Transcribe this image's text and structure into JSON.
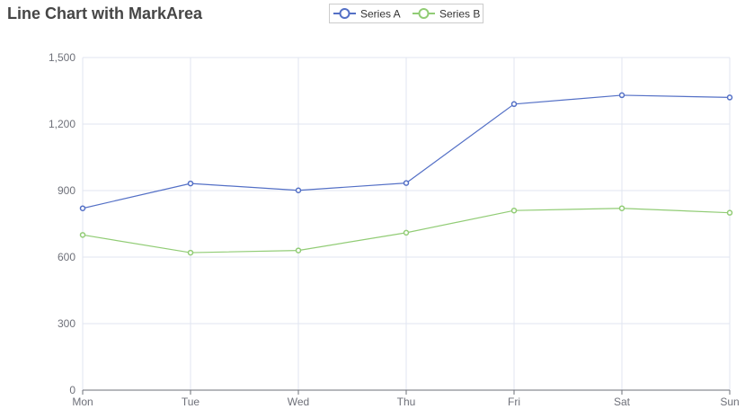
{
  "chart_data": {
    "type": "line",
    "title": "Line Chart with MarkArea",
    "categories": [
      "Mon",
      "Tue",
      "Wed",
      "Thu",
      "Fri",
      "Sat",
      "Sun"
    ],
    "series": [
      {
        "name": "Series A",
        "values": [
          820,
          932,
          901,
          934,
          1290,
          1330,
          1320
        ],
        "color": "#5470c6"
      },
      {
        "name": "Series B",
        "values": [
          700,
          620,
          630,
          710,
          810,
          820,
          800
        ],
        "color": "#91cc75"
      }
    ],
    "y_ticks": [
      0,
      300,
      600,
      900,
      1200,
      1500
    ],
    "y_tick_labels": [
      "0",
      "300",
      "600",
      "900",
      "1,200",
      "1,500"
    ],
    "ylim": [
      0,
      1500
    ],
    "xlabel": "",
    "ylabel": "",
    "grid": true,
    "legend_position": "top-center"
  }
}
